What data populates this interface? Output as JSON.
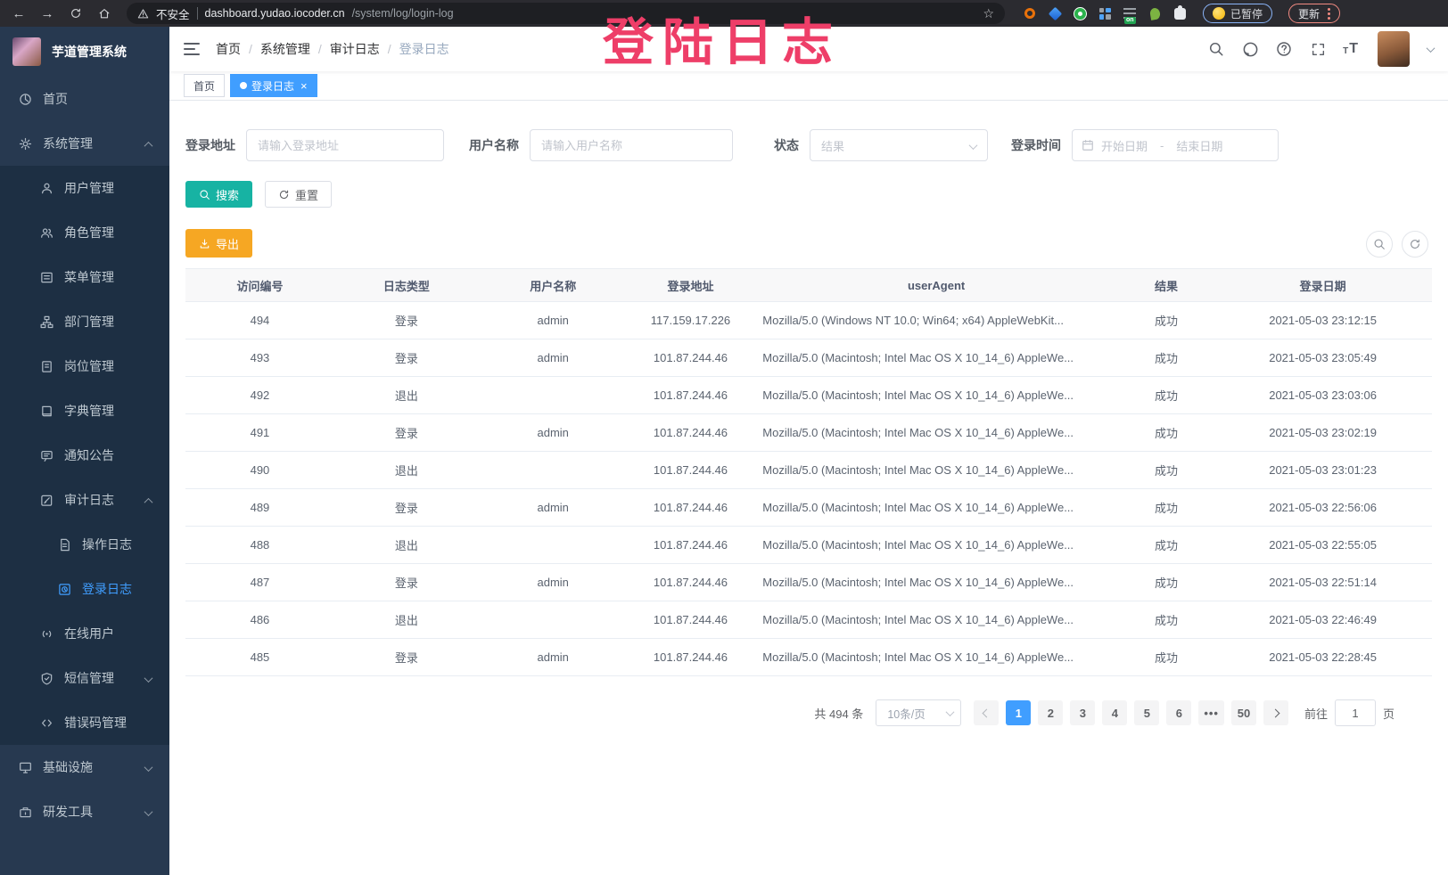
{
  "colors": {
    "accent": "#409eff",
    "teal": "#17b3a3",
    "orange": "#f6a723",
    "watermark": "#ee3e68",
    "sidebar": "#273950",
    "submenu": "#1d2f43"
  },
  "watermark": {
    "text": "登陆日志"
  },
  "browser": {
    "not_secure": "不安全",
    "url_host": "dashboard.yudao.iocoder.cn",
    "url_path": "/system/log/login-log",
    "paused_label": "已暂停",
    "update_label": "更新",
    "on_badge": "on",
    "extension_icons": [
      "orange-ring-icon",
      "blue-gem-icon",
      "green-circle-icon",
      "grid-icon",
      "list-on-icon",
      "sprout-icon",
      "puzzle-icon"
    ]
  },
  "sidebar": {
    "title": "芋道管理系统",
    "items": [
      {
        "label": "首页",
        "icon": "dashboard-icon",
        "level": 1
      },
      {
        "label": "系统管理",
        "icon": "gear-icon",
        "level": 1,
        "chevron": "up"
      },
      {
        "label": "用户管理",
        "icon": "user-icon",
        "level": 2
      },
      {
        "label": "角色管理",
        "icon": "users-icon",
        "level": 2
      },
      {
        "label": "菜单管理",
        "icon": "menu-icon",
        "level": 2
      },
      {
        "label": "部门管理",
        "icon": "tree-icon",
        "level": 2
      },
      {
        "label": "岗位管理",
        "icon": "badge-icon",
        "level": 2
      },
      {
        "label": "字典管理",
        "icon": "dict-icon",
        "level": 2
      },
      {
        "label": "通知公告",
        "icon": "notice-icon",
        "level": 2
      },
      {
        "label": "审计日志",
        "icon": "audit-icon",
        "level": 2,
        "chevron": "up"
      },
      {
        "label": "操作日志",
        "icon": "doc-icon",
        "level": 3
      },
      {
        "label": "登录日志",
        "icon": "login-log-icon",
        "level": 3,
        "active": true
      },
      {
        "label": "在线用户",
        "icon": "online-icon",
        "level": 2
      },
      {
        "label": "短信管理",
        "icon": "sms-icon",
        "level": 2,
        "chevron": "down"
      },
      {
        "label": "错误码管理",
        "icon": "code-icon",
        "level": 2
      },
      {
        "label": "基础设施",
        "icon": "infra-icon",
        "level": 1,
        "chevron": "down"
      },
      {
        "label": "研发工具",
        "icon": "devtool-icon",
        "level": 1,
        "chevron": "down"
      }
    ]
  },
  "navbar": {
    "breadcrumb": [
      "首页",
      "系统管理",
      "审计日志",
      "登录日志"
    ],
    "icon_names": [
      "search-icon",
      "github-icon",
      "help-icon",
      "fullscreen-icon",
      "font-size-icon"
    ]
  },
  "tags": [
    {
      "label": "首页",
      "active": false,
      "closable": false
    },
    {
      "label": "登录日志",
      "active": true,
      "closable": true
    }
  ],
  "filters": {
    "address": {
      "label": "登录地址",
      "placeholder": "请输入登录地址"
    },
    "username": {
      "label": "用户名称",
      "placeholder": "请输入用户名称"
    },
    "status": {
      "label": "状态",
      "placeholder": "结果"
    },
    "time": {
      "label": "登录时间",
      "start_placeholder": "开始日期",
      "separator": "-",
      "end_placeholder": "结束日期"
    },
    "search_label": "搜索",
    "reset_label": "重置"
  },
  "toolbar": {
    "export_label": "导出",
    "circle_icons": [
      "search-circle-icon",
      "refresh-circle-icon"
    ]
  },
  "table": {
    "columns": [
      "访问编号",
      "日志类型",
      "用户名称",
      "登录地址",
      "userAgent",
      "结果",
      "登录日期"
    ],
    "rows": [
      [
        "494",
        "登录",
        "admin",
        "117.159.17.226",
        "Mozilla/5.0 (Windows NT 10.0; Win64; x64) AppleWebKit...",
        "成功",
        "2021-05-03 23:12:15"
      ],
      [
        "493",
        "登录",
        "admin",
        "101.87.244.46",
        "Mozilla/5.0 (Macintosh; Intel Mac OS X 10_14_6) AppleWe...",
        "成功",
        "2021-05-03 23:05:49"
      ],
      [
        "492",
        "退出",
        "",
        "101.87.244.46",
        "Mozilla/5.0 (Macintosh; Intel Mac OS X 10_14_6) AppleWe...",
        "成功",
        "2021-05-03 23:03:06"
      ],
      [
        "491",
        "登录",
        "admin",
        "101.87.244.46",
        "Mozilla/5.0 (Macintosh; Intel Mac OS X 10_14_6) AppleWe...",
        "成功",
        "2021-05-03 23:02:19"
      ],
      [
        "490",
        "退出",
        "",
        "101.87.244.46",
        "Mozilla/5.0 (Macintosh; Intel Mac OS X 10_14_6) AppleWe...",
        "成功",
        "2021-05-03 23:01:23"
      ],
      [
        "489",
        "登录",
        "admin",
        "101.87.244.46",
        "Mozilla/5.0 (Macintosh; Intel Mac OS X 10_14_6) AppleWe...",
        "成功",
        "2021-05-03 22:56:06"
      ],
      [
        "488",
        "退出",
        "",
        "101.87.244.46",
        "Mozilla/5.0 (Macintosh; Intel Mac OS X 10_14_6) AppleWe...",
        "成功",
        "2021-05-03 22:55:05"
      ],
      [
        "487",
        "登录",
        "admin",
        "101.87.244.46",
        "Mozilla/5.0 (Macintosh; Intel Mac OS X 10_14_6) AppleWe...",
        "成功",
        "2021-05-03 22:51:14"
      ],
      [
        "486",
        "退出",
        "",
        "101.87.244.46",
        "Mozilla/5.0 (Macintosh; Intel Mac OS X 10_14_6) AppleWe...",
        "成功",
        "2021-05-03 22:46:49"
      ],
      [
        "485",
        "登录",
        "admin",
        "101.87.244.46",
        "Mozilla/5.0 (Macintosh; Intel Mac OS X 10_14_6) AppleWe...",
        "成功",
        "2021-05-03 22:28:45"
      ]
    ]
  },
  "pagination": {
    "total_text": "共 494 条",
    "page_size": "10条/页",
    "pages": [
      "1",
      "2",
      "3",
      "4",
      "5",
      "6",
      "•••",
      "50"
    ],
    "active_page": "1",
    "goto_label": "前往",
    "goto_value": "1",
    "unit_label": "页"
  }
}
